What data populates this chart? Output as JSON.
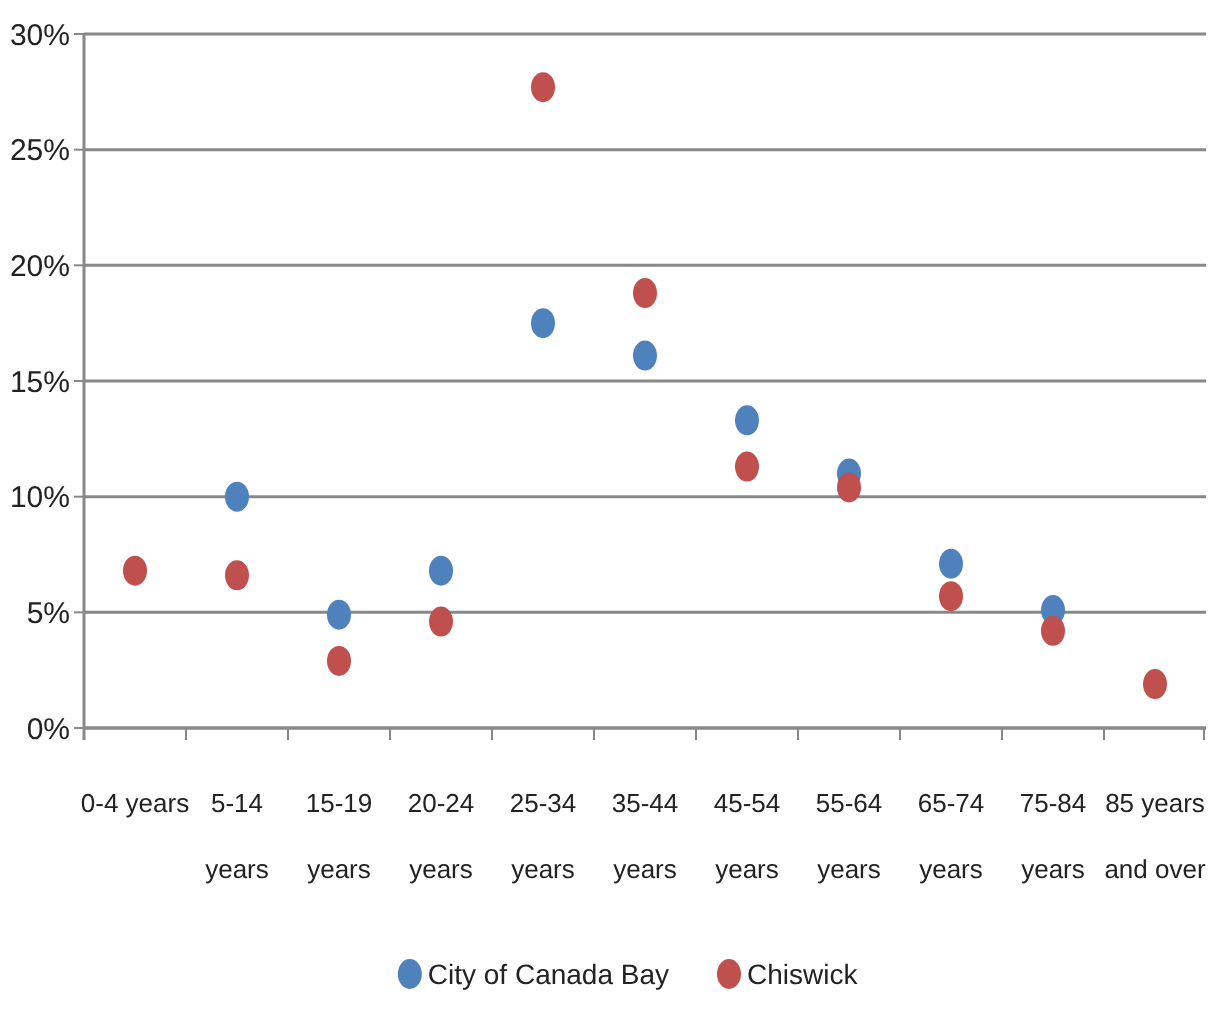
{
  "chart_data": {
    "type": "scatter",
    "categories": [
      "0-4 years",
      "5-14 years",
      "15-19 years",
      "20-24 years",
      "25-34 years",
      "35-44 years",
      "45-54 years",
      "55-64 years",
      "65-74 years",
      "75-84 years",
      "85 years and over"
    ],
    "series": [
      {
        "name": "City of Canada Bay",
        "color": "#4f81bd",
        "values": [
          null,
          10.0,
          4.9,
          6.8,
          17.5,
          16.1,
          13.3,
          11.0,
          7.1,
          5.1,
          null
        ]
      },
      {
        "name": "Chiswick",
        "color": "#c0504d",
        "values": [
          6.8,
          6.6,
          2.9,
          4.6,
          27.7,
          18.8,
          11.3,
          10.4,
          5.7,
          4.2,
          1.9
        ]
      }
    ],
    "ylim": [
      0,
      30
    ],
    "yticks": [
      {
        "value": 0,
        "label": "0%"
      },
      {
        "value": 5,
        "label": "5%"
      },
      {
        "value": 10,
        "label": "10%"
      },
      {
        "value": 15,
        "label": "15%"
      },
      {
        "value": 20,
        "label": "20%"
      },
      {
        "value": 25,
        "label": "25%"
      },
      {
        "value": 30,
        "label": "30%"
      }
    ],
    "grid": "y",
    "legend": "bottom",
    "marker": "circle"
  }
}
